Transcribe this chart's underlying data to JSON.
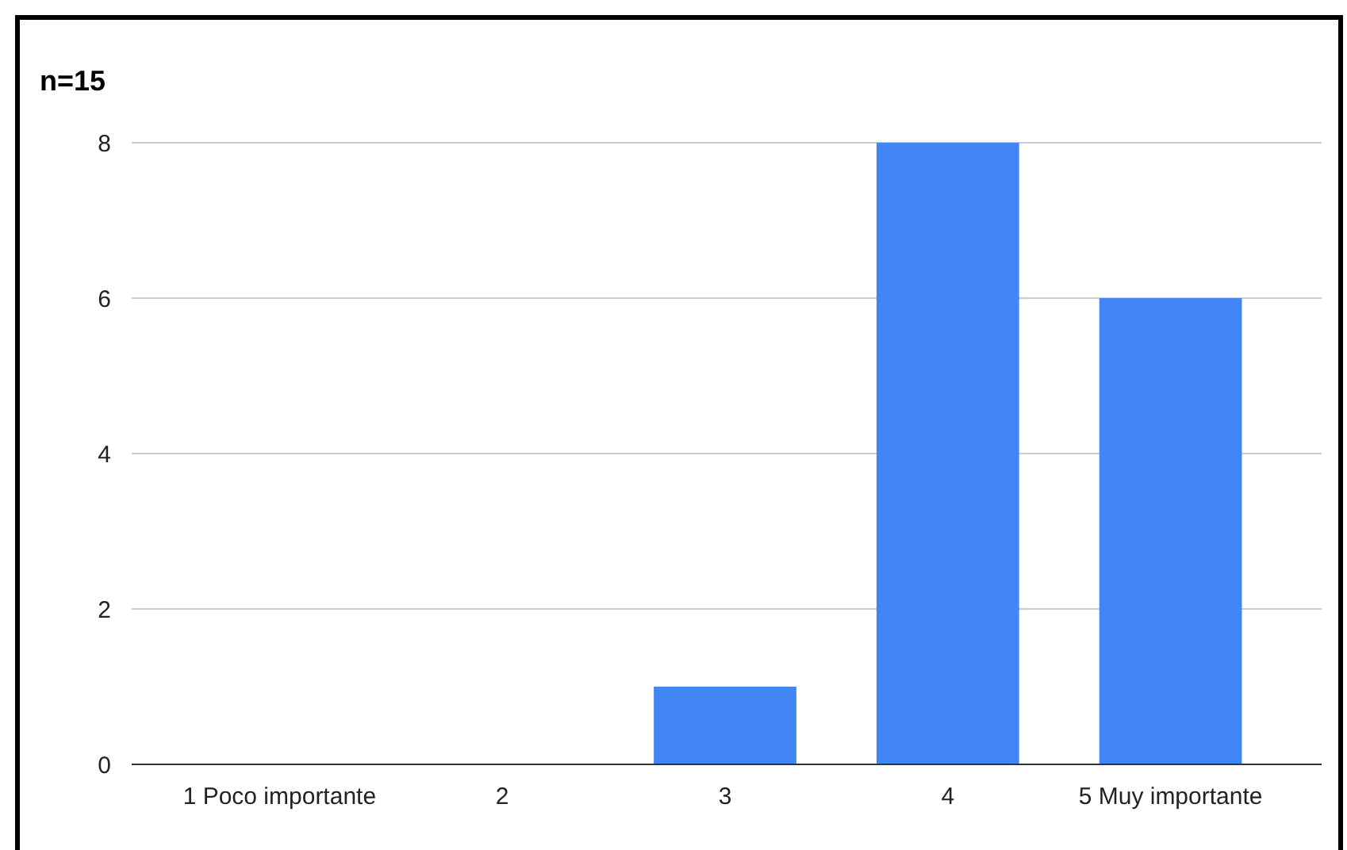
{
  "chart_data": {
    "type": "bar",
    "title": "n=15",
    "categories": [
      "1 Poco importante",
      "2",
      "3",
      "4",
      "5 Muy importante"
    ],
    "values": [
      0,
      0,
      1,
      8,
      6
    ],
    "color": "#4285f4",
    "ylim": [
      0,
      8
    ],
    "yticks": [
      0,
      2,
      4,
      6,
      8
    ],
    "grid": "y"
  }
}
